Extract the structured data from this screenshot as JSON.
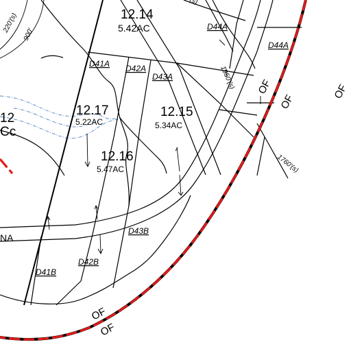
{
  "parcels": [
    {
      "id": "12.14",
      "area": "5.42AC"
    },
    {
      "id": "12.17",
      "area": "5.22AC"
    },
    {
      "id": "12.15",
      "area": "5.34AC"
    },
    {
      "id": "12.16",
      "area": "5.47AC"
    }
  ],
  "partial_parcel_id": "12",
  "partial_parcel_area": "Cc",
  "lot_codes": [
    "D44A",
    "D44A",
    "D41A",
    "D42A",
    "D43A",
    "D43B",
    "D42B",
    "D41B"
  ],
  "dimension_labels": [
    "220'(s)",
    "900'",
    "(s)",
    "1950'(s)",
    "1760'(s)"
  ],
  "road_fragment": "NA",
  "boundary_label": "OF",
  "colors": {
    "boundary_red": "#e21b1b",
    "stream_blue": "#4a7fbf",
    "linework": "#000000"
  }
}
